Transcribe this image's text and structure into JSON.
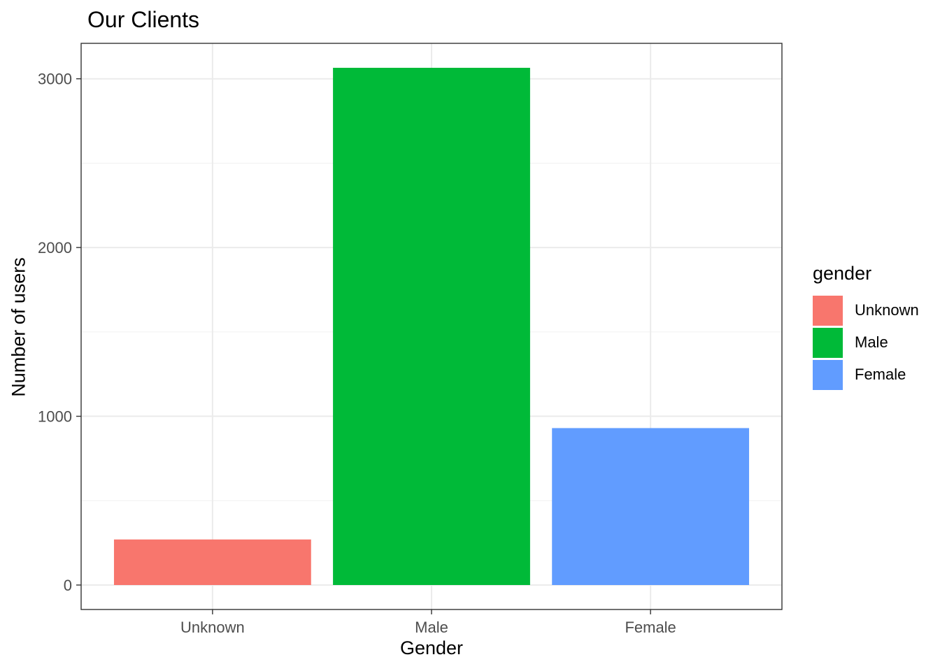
{
  "chart_data": {
    "type": "bar",
    "title": "Our Clients",
    "xlabel": "Gender",
    "ylabel": "Number of users",
    "categories": [
      "Unknown",
      "Male",
      "Female"
    ],
    "values": [
      270,
      3065,
      930
    ],
    "colors": [
      "#F8766D",
      "#00BA38",
      "#619CFF"
    ],
    "ylim": [
      -145,
      3210
    ],
    "y_ticks": [
      0,
      1000,
      2000,
      3000
    ],
    "y_minor_ticks": [
      500,
      1500,
      2500
    ],
    "grid": true,
    "legend": {
      "title": "gender",
      "placement": "right",
      "items": [
        "Unknown",
        "Male",
        "Female"
      ]
    }
  }
}
